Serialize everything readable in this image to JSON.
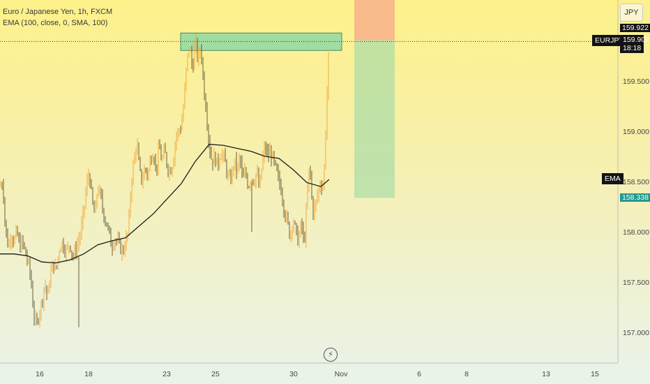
{
  "header": {
    "symbol_line": "Euro / Japanese Yen, 1h, FXCM",
    "indicator_line": "EMA (100, close, 0, SMA, 100)"
  },
  "currency": "JPY",
  "tags": {
    "symbol": "EURJPY",
    "last_price": "159.907",
    "countdown": "18:18",
    "high_price": "159.922",
    "ema_label": "EMA",
    "target_price": "158.338"
  },
  "icons": [
    "lightning-icon"
  ],
  "chart_data": {
    "type": "candlestick",
    "title": "Euro / Japanese Yen, 1h, FXCM",
    "y_ticks": [
      "157.000",
      "157.500",
      "158.000",
      "158.500",
      "159.000",
      "159.500"
    ],
    "x_ticks": [
      "16",
      "18",
      "23",
      "25",
      "30",
      "Nov",
      "6",
      "8",
      "13",
      "15"
    ],
    "ylim": [
      156.8,
      160.0
    ],
    "price_path": [
      [
        0,
        158.45
      ],
      [
        4,
        158.5
      ],
      [
        8,
        158.0
      ],
      [
        12,
        157.85
      ],
      [
        16,
        158.0
      ],
      [
        20,
        157.9
      ],
      [
        24,
        158.0
      ],
      [
        28,
        157.85
      ],
      [
        32,
        157.9
      ],
      [
        36,
        157.8
      ],
      [
        40,
        157.7
      ],
      [
        44,
        157.55
      ],
      [
        48,
        157.2
      ],
      [
        52,
        157.05
      ],
      [
        56,
        157.2
      ],
      [
        60,
        157.3
      ],
      [
        64,
        157.5
      ],
      [
        68,
        157.35
      ],
      [
        72,
        157.55
      ],
      [
        76,
        157.7
      ],
      [
        80,
        157.6
      ],
      [
        84,
        157.8
      ],
      [
        88,
        157.9
      ],
      [
        92,
        157.85
      ],
      [
        96,
        157.8
      ],
      [
        100,
        157.9
      ],
      [
        104,
        157.75
      ],
      [
        108,
        157.8
      ],
      [
        112,
        157.9
      ],
      [
        116,
        158.0
      ],
      [
        120,
        158.2
      ],
      [
        124,
        158.45
      ],
      [
        128,
        158.6
      ],
      [
        132,
        158.3
      ],
      [
        136,
        158.15
      ],
      [
        140,
        158.45
      ],
      [
        144,
        158.35
      ],
      [
        148,
        158.2
      ],
      [
        152,
        158.1
      ],
      [
        156,
        158.0
      ],
      [
        160,
        157.85
      ],
      [
        164,
        157.95
      ],
      [
        168,
        157.9
      ],
      [
        172,
        157.85
      ],
      [
        176,
        157.8
      ],
      [
        180,
        157.9
      ],
      [
        184,
        158.0
      ],
      [
        188,
        158.5
      ],
      [
        192,
        158.7
      ],
      [
        196,
        158.9
      ],
      [
        200,
        158.6
      ],
      [
        204,
        158.5
      ],
      [
        208,
        158.65
      ],
      [
        212,
        158.55
      ],
      [
        216,
        158.75
      ],
      [
        220,
        158.8
      ],
      [
        224,
        158.6
      ],
      [
        228,
        158.85
      ],
      [
        232,
        158.7
      ],
      [
        236,
        158.8
      ],
      [
        240,
        158.65
      ],
      [
        244,
        158.6
      ],
      [
        248,
        158.7
      ],
      [
        252,
        158.95
      ],
      [
        256,
        159.0
      ],
      [
        260,
        159.05
      ],
      [
        264,
        159.3
      ],
      [
        268,
        159.7
      ],
      [
        272,
        159.85
      ],
      [
        276,
        159.6
      ],
      [
        280,
        159.9
      ],
      [
        284,
        159.7
      ],
      [
        288,
        159.85
      ],
      [
        292,
        159.45
      ],
      [
        296,
        159.2
      ],
      [
        300,
        158.85
      ],
      [
        304,
        158.7
      ],
      [
        308,
        158.75
      ],
      [
        312,
        158.65
      ],
      [
        316,
        158.8
      ],
      [
        320,
        158.75
      ],
      [
        324,
        158.65
      ],
      [
        328,
        158.5
      ],
      [
        332,
        158.55
      ],
      [
        336,
        158.7
      ],
      [
        340,
        158.6
      ],
      [
        344,
        158.75
      ],
      [
        348,
        158.5
      ],
      [
        352,
        158.6
      ],
      [
        356,
        158.45
      ],
      [
        360,
        158.55
      ],
      [
        364,
        158.5
      ],
      [
        368,
        158.6
      ],
      [
        372,
        158.4
      ],
      [
        376,
        158.7
      ],
      [
        380,
        158.85
      ],
      [
        384,
        158.75
      ],
      [
        388,
        158.8
      ],
      [
        392,
        158.7
      ],
      [
        396,
        158.6
      ],
      [
        400,
        158.5
      ],
      [
        404,
        158.4
      ],
      [
        408,
        158.2
      ],
      [
        412,
        158.1
      ],
      [
        416,
        157.95
      ],
      [
        420,
        158.15
      ],
      [
        424,
        158.0
      ],
      [
        428,
        157.9
      ],
      [
        432,
        158.1
      ],
      [
        436,
        157.85
      ],
      [
        440,
        158.3
      ],
      [
        444,
        158.7
      ],
      [
        448,
        158.2
      ],
      [
        452,
        158.25
      ],
      [
        456,
        158.4
      ],
      [
        460,
        158.5
      ],
      [
        464,
        158.45
      ],
      [
        468,
        159.2
      ],
      [
        472,
        159.91
      ]
    ],
    "ema_path": [
      [
        0,
        157.78
      ],
      [
        20,
        157.78
      ],
      [
        40,
        157.76
      ],
      [
        60,
        157.7
      ],
      [
        80,
        157.69
      ],
      [
        100,
        157.72
      ],
      [
        120,
        157.78
      ],
      [
        140,
        157.87
      ],
      [
        160,
        157.91
      ],
      [
        180,
        157.94
      ],
      [
        200,
        158.06
      ],
      [
        220,
        158.18
      ],
      [
        240,
        158.33
      ],
      [
        260,
        158.48
      ],
      [
        280,
        158.7
      ],
      [
        300,
        158.87
      ],
      [
        320,
        158.86
      ],
      [
        340,
        158.83
      ],
      [
        360,
        158.8
      ],
      [
        380,
        158.75
      ],
      [
        400,
        158.73
      ],
      [
        420,
        158.62
      ],
      [
        440,
        158.49
      ],
      [
        460,
        158.45
      ],
      [
        472,
        158.52
      ]
    ],
    "resistance_zone": {
      "y_high": 159.88,
      "y_low": 159.7
    },
    "short_position": {
      "entry": 159.907,
      "stop": 160.0,
      "target": 158.338
    }
  }
}
